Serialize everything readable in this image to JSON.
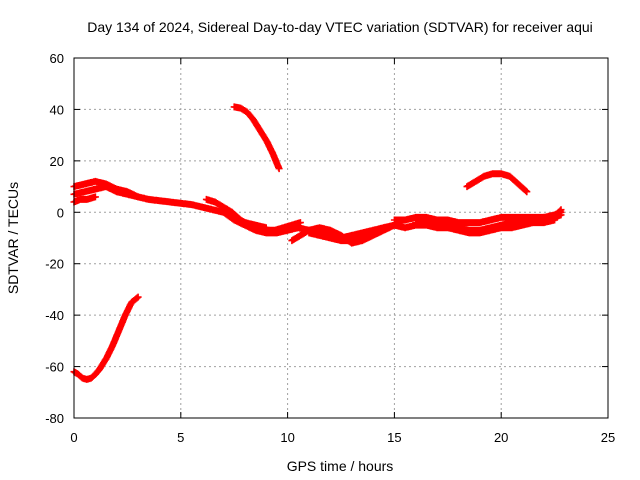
{
  "chart_data": {
    "type": "scatter",
    "title": "Day 134 of 2024, Sidereal Day-to-day VTEC variation (SDTVAR) for receiver aqui",
    "xlabel": "GPS time / hours",
    "ylabel": "SDTVAR / TECUs",
    "xlim": [
      0,
      25
    ],
    "ylim": [
      -80,
      60
    ],
    "xticks": [
      0,
      5,
      10,
      15,
      20,
      25
    ],
    "yticks": [
      -80,
      -60,
      -40,
      -20,
      0,
      20,
      40,
      60
    ],
    "grid": true,
    "marker": "plus",
    "color": "#ff0000",
    "series": [
      {
        "name": "arc-1",
        "x": [
          0.0,
          0.2,
          0.4,
          0.6,
          0.8,
          1.0,
          1.2,
          1.5,
          1.8,
          2.1,
          2.4,
          2.7,
          3.0
        ],
        "y": [
          -62,
          -63,
          -64.5,
          -65,
          -64.5,
          -63,
          -61,
          -57,
          -52,
          -46,
          -40,
          -35,
          -33
        ]
      },
      {
        "name": "arc-2",
        "x": [
          7.5,
          7.8,
          8.1,
          8.4,
          8.7,
          9.0,
          9.3,
          9.6
        ],
        "y": [
          41,
          40.5,
          39,
          36,
          32,
          28,
          23,
          17
        ]
      },
      {
        "name": "arc-3",
        "x": [
          0.0,
          0.5,
          1.0,
          1.5,
          2.0,
          2.5,
          3.0,
          3.5,
          4.0,
          4.5,
          5.0,
          5.5,
          6.0,
          6.5,
          7.0,
          7.5,
          8.0,
          8.5,
          9.0
        ],
        "y": [
          10,
          11,
          12,
          11,
          9,
          8,
          6,
          5,
          4.5,
          4,
          3.5,
          3,
          2,
          1,
          0,
          -2,
          -4,
          -5,
          -6
        ]
      },
      {
        "name": "arc-4",
        "x": [
          0.0,
          0.5,
          1.0,
          1.5,
          2.0,
          2.5,
          3.0
        ],
        "y": [
          7,
          8,
          9,
          10,
          8,
          7,
          6
        ]
      },
      {
        "name": "arc-5",
        "x": [
          0.0,
          0.3,
          0.6,
          1.0
        ],
        "y": [
          4,
          5,
          5,
          6
        ]
      },
      {
        "name": "arc-6",
        "x": [
          6.2,
          6.6,
          7.0,
          7.4,
          7.8,
          8.2,
          8.6,
          9.0,
          9.4,
          9.8,
          10.2,
          10.6
        ],
        "y": [
          5,
          4,
          2,
          0,
          -3,
          -5,
          -6,
          -7,
          -7,
          -6,
          -5,
          -4
        ]
      },
      {
        "name": "arc-7",
        "x": [
          7.0,
          7.5,
          8.0,
          8.5,
          9.0,
          9.5,
          10.0
        ],
        "y": [
          0,
          -3,
          -5,
          -7,
          -8,
          -8,
          -7
        ]
      },
      {
        "name": "arc-8",
        "x": [
          10.0,
          10.5,
          11.0,
          11.5,
          12.0,
          12.5,
          13.0,
          13.5,
          14.0,
          14.5
        ],
        "y": [
          -7,
          -6,
          -7,
          -8,
          -9,
          -10,
          -9,
          -8,
          -7,
          -6
        ]
      },
      {
        "name": "arc-9",
        "x": [
          10.2,
          10.6,
          11.0,
          11.5,
          12.0,
          12.5,
          13.0,
          13.5,
          14.0,
          14.5,
          15.0
        ],
        "y": [
          -11,
          -9,
          -7,
          -6,
          -7,
          -9,
          -12,
          -11,
          -9,
          -7,
          -5
        ]
      },
      {
        "name": "arc-10",
        "x": [
          11.0,
          11.5,
          12.0,
          12.5,
          13.0,
          13.5,
          14.0,
          14.5,
          15.0
        ],
        "y": [
          -8,
          -9,
          -10,
          -11,
          -11,
          -10,
          -8,
          -6,
          -5
        ]
      },
      {
        "name": "arc-11",
        "x": [
          15.0,
          15.5,
          16.0,
          16.5,
          17.0,
          17.5,
          18.0,
          18.5,
          19.0,
          19.5,
          20.0,
          20.5,
          21.0,
          21.5,
          22.0,
          22.5,
          22.8
        ],
        "y": [
          -3,
          -3,
          -2,
          -2,
          -3,
          -3,
          -4,
          -4,
          -4,
          -3,
          -2,
          -2,
          -2,
          -2,
          -2,
          -2,
          -1
        ]
      },
      {
        "name": "arc-12",
        "x": [
          15.0,
          15.5,
          16.0,
          16.5,
          17.0,
          17.5,
          18.0,
          18.5,
          19.0,
          19.5,
          20.0,
          20.5,
          21.0,
          21.5,
          22.0,
          22.5
        ],
        "y": [
          -5,
          -6,
          -5,
          -5,
          -6,
          -6,
          -7,
          -8,
          -8,
          -7,
          -6,
          -6,
          -5,
          -4,
          -4,
          -3
        ]
      },
      {
        "name": "arc-13",
        "x": [
          16.0,
          16.5,
          17.0,
          17.5,
          18.0,
          18.5,
          19.0,
          19.5,
          20.0,
          20.5,
          21.0,
          21.5,
          22.0,
          22.5,
          22.8
        ],
        "y": [
          -4,
          -4,
          -5,
          -5,
          -6,
          -7,
          -7,
          -6,
          -5,
          -4,
          -3,
          -3,
          -2,
          -1,
          0
        ]
      },
      {
        "name": "arc-14",
        "x": [
          18.4,
          18.8,
          19.2,
          19.6,
          20.0,
          20.4,
          20.8,
          21.2
        ],
        "y": [
          10,
          12,
          14,
          15,
          15,
          14,
          11,
          8
        ]
      },
      {
        "name": "arc-15",
        "x": [
          22.4,
          22.6,
          22.8
        ],
        "y": [
          -3,
          -1,
          1
        ]
      }
    ]
  }
}
